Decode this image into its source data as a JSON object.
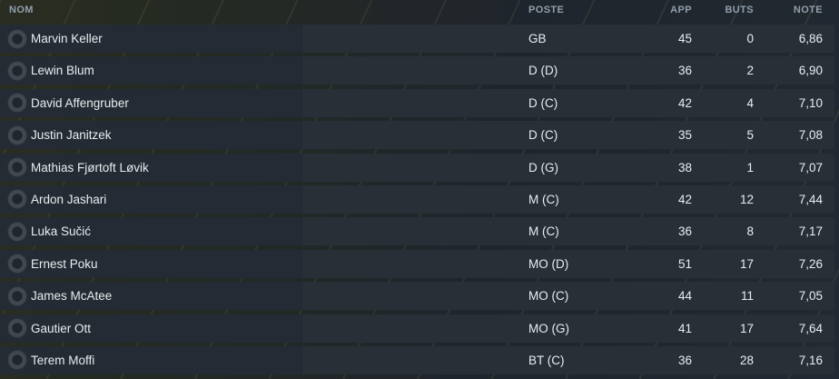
{
  "theme": {
    "bg_olive": "#2a2d21",
    "bg_blue": "#1f252c",
    "row_bg": "#242b34",
    "row_text": "#e9edf1",
    "header_text": "#919fac"
  },
  "table": {
    "columns": [
      {
        "key": "nom",
        "label": "NOM"
      },
      {
        "key": "poste",
        "label": "POSTE"
      },
      {
        "key": "app",
        "label": "APP"
      },
      {
        "key": "buts",
        "label": "BUTS"
      },
      {
        "key": "note",
        "label": "NOTE"
      }
    ],
    "rows": [
      {
        "nom": "Marvin Keller",
        "poste": "GB",
        "app": "45",
        "buts": "0",
        "note": "6,86"
      },
      {
        "nom": "Lewin Blum",
        "poste": "D (D)",
        "app": "36",
        "buts": "2",
        "note": "6,90"
      },
      {
        "nom": "David Affengruber",
        "poste": "D (C)",
        "app": "42",
        "buts": "4",
        "note": "7,10"
      },
      {
        "nom": "Justin Janitzek",
        "poste": "D (C)",
        "app": "35",
        "buts": "5",
        "note": "7,08"
      },
      {
        "nom": "Mathias Fjørtoft Løvik",
        "poste": "D (G)",
        "app": "38",
        "buts": "1",
        "note": "7,07"
      },
      {
        "nom": "Ardon Jashari",
        "poste": "M (C)",
        "app": "42",
        "buts": "12",
        "note": "7,44"
      },
      {
        "nom": "Luka Sučić",
        "poste": "M (C)",
        "app": "36",
        "buts": "8",
        "note": "7,17"
      },
      {
        "nom": "Ernest Poku",
        "poste": "MO (D)",
        "app": "51",
        "buts": "17",
        "note": "7,26"
      },
      {
        "nom": "James McAtee",
        "poste": "MO (C)",
        "app": "44",
        "buts": "11",
        "note": "7,05"
      },
      {
        "nom": "Gautier Ott",
        "poste": "MO (G)",
        "app": "41",
        "buts": "17",
        "note": "7,64"
      },
      {
        "nom": "Terem Moffi",
        "poste": "BT (C)",
        "app": "36",
        "buts": "28",
        "note": "7,16"
      }
    ]
  }
}
